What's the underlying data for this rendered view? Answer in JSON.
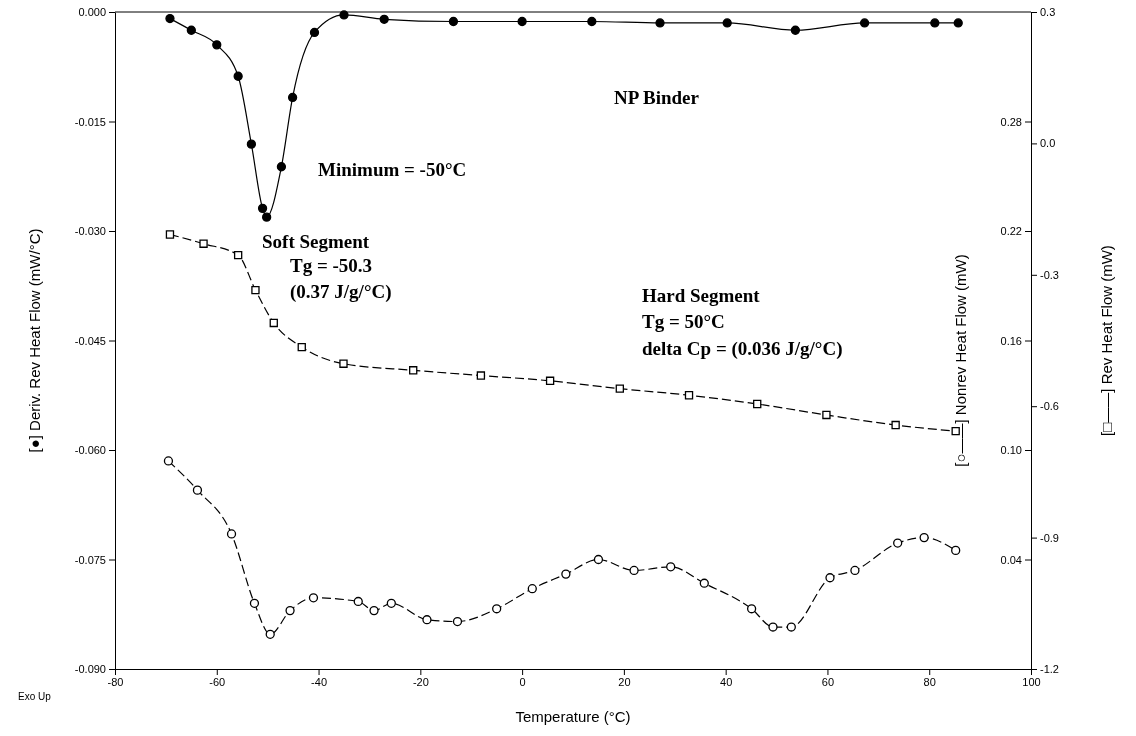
{
  "chart_data": {
    "type": "line",
    "xlabel": "Temperature (°C)",
    "ylabel": "[●] Deriv. Rev Heat Flow (mW/°C)",
    "y2label": "[○——] Nonrev Heat Flow (mW)",
    "y3label": "[□——] Rev Heat Flow (mW)",
    "xlim": [
      -80,
      100
    ],
    "xticks": [
      -80,
      -60,
      -40,
      -20,
      0,
      20,
      40,
      60,
      80,
      100
    ],
    "ylim": [
      -0.09,
      0
    ],
    "yticks": [
      {
        "value": 0,
        "label": "0.000"
      },
      {
        "value": -0.015,
        "label": "-0.015"
      },
      {
        "value": -0.03,
        "label": "-0.030"
      },
      {
        "value": -0.045,
        "label": "-0.045"
      },
      {
        "value": -0.06,
        "label": "-0.060"
      },
      {
        "value": -0.075,
        "label": "-0.075"
      },
      {
        "value": -0.09,
        "label": "-0.090"
      }
    ],
    "y2lim": [
      -0.02,
      0.34
    ],
    "y2ticks": [
      {
        "value": 0.04,
        "label": "0.04"
      },
      {
        "value": 0.1,
        "label": "0.10"
      },
      {
        "value": 0.16,
        "label": "0.16"
      },
      {
        "value": 0.22,
        "label": "0.22"
      },
      {
        "value": 0.28,
        "label": "0.28"
      }
    ],
    "y3lim": [
      -1.2,
      0.3
    ],
    "y3ticks": [
      {
        "value": 0.3,
        "label": "0.3"
      },
      {
        "value": 0,
        "label": "0.0"
      },
      {
        "value": -0.3,
        "label": "-0.3"
      },
      {
        "value": -0.6,
        "label": "-0.6"
      },
      {
        "value": -0.9,
        "label": "-0.9"
      },
      {
        "value": -1.2,
        "label": "-1.2"
      }
    ],
    "grid": false,
    "series": [
      {
        "color": "#000000",
        "axis": "y",
        "marker": "circle",
        "line_style": "solid",
        "x": [
          -69.2,
          -65,
          -60,
          -55.8,
          -53.2,
          -51,
          -50.2,
          -47.3,
          -45.1,
          -40.8,
          -35,
          -27.1,
          -13.5,
          0,
          13.7,
          27.1,
          40.3,
          53.7,
          67.3,
          81.1,
          85.7
        ],
        "values": [
          -0.0009,
          -0.0025,
          -0.0045,
          -0.0088,
          -0.0181,
          -0.0269,
          -0.0281,
          -0.0212,
          -0.0117,
          -0.0028,
          -0.0004,
          -0.001,
          -0.0013,
          -0.0013,
          -0.0013,
          -0.0015,
          -0.0015,
          -0.0025,
          -0.0015,
          -0.0015,
          -0.0015
        ]
      },
      {
        "color": "#000000",
        "axis": "y3",
        "marker": "square",
        "line_style": "dashed",
        "x": [
          -69.2,
          -62.6,
          -55.8,
          -52.4,
          -48.8,
          -43.3,
          -35.1,
          -21.4,
          -8.1,
          5.5,
          19.2,
          32.8,
          46.2,
          59.8,
          73.4,
          85.2
        ],
        "values": [
          -0.208,
          -0.229,
          -0.255,
          -0.335,
          -0.41,
          -0.465,
          -0.503,
          -0.518,
          -0.53,
          -0.542,
          -0.56,
          -0.575,
          -0.595,
          -0.62,
          -0.643,
          -0.657
        ]
      },
      {
        "color": "#000000",
        "axis": "y2",
        "marker": "circle",
        "line_style": "dashed",
        "x": [
          -69.5,
          -63.8,
          -57.1,
          -52.6,
          -49.5,
          -45.6,
          -41,
          -32.2,
          -29.1,
          -25.7,
          -18.7,
          -12.7,
          -5,
          2,
          8.6,
          15,
          22,
          29.2,
          35.8,
          45.1,
          49.3,
          52.9,
          60.5,
          65.4,
          73.8,
          79,
          85.2
        ],
        "values": [
          0.094,
          0.078,
          0.054,
          0.016,
          -0.001,
          0.012,
          0.019,
          0.017,
          0.012,
          0.016,
          0.007,
          0.006,
          0.013,
          0.024,
          0.032,
          0.04,
          0.034,
          0.036,
          0.027,
          0.013,
          0.003,
          0.003,
          0.03,
          0.034,
          0.049,
          0.052,
          0.045
        ]
      }
    ],
    "annotations": [
      "NP Binder",
      "Minimum = -50°C",
      "Soft Segment",
      "Tg = -50.3",
      "(0.37 J/g/°C)",
      "Hard Segment",
      "Tg = 50°C",
      "delta Cp = (0.036 J/g/°C)",
      "Exo Up"
    ]
  }
}
